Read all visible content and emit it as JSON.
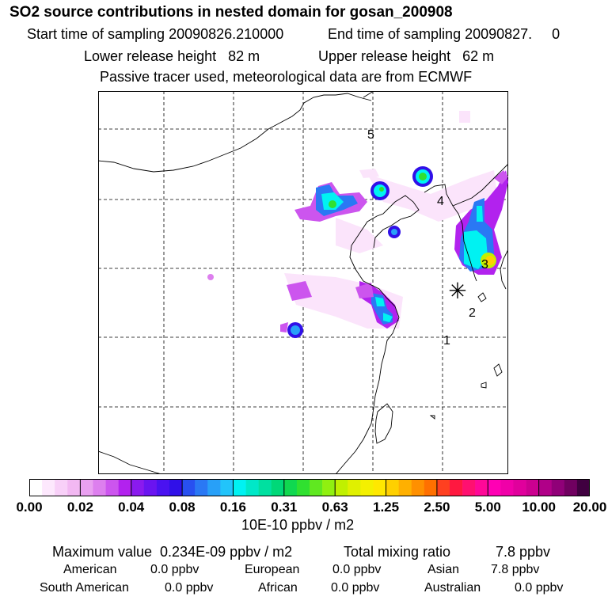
{
  "header": {
    "title": "SO2 source contributions in nested domain for gosan_200908",
    "start": "Start time of sampling 20090826.210000",
    "end": "End time of sampling 20090827.     0",
    "lower": "Lower release height   82 m",
    "upper": "Upper release height   62 m",
    "note": "Passive tracer used, meteorological data are from ECMWF"
  },
  "map": {
    "markers": [
      "5",
      "4",
      "3",
      "2",
      "1"
    ],
    "receptor_symbol": "✳"
  },
  "colorbar": {
    "ticks": [
      "0.00",
      "0.02",
      "0.04",
      "0.08",
      "0.16",
      "0.31",
      "0.63",
      "1.25",
      "2.50",
      "5.00",
      "10.00",
      "20.00"
    ],
    "colors": [
      "#ffffff",
      "#fde8fd",
      "#f8d0f8",
      "#f2b8f2",
      "#e9a0f0",
      "#dd7fee",
      "#cc55ee",
      "#b222ee",
      "#8a1aee",
      "#6a14f0",
      "#4a12f0",
      "#3010e8",
      "#2850f0",
      "#2a78f4",
      "#28a0f8",
      "#22c4fa",
      "#00f2f2",
      "#00e8c8",
      "#00e0a0",
      "#00d878",
      "#10d850",
      "#30e030",
      "#60e820",
      "#90f010",
      "#c0f000",
      "#e0f000",
      "#f4f000",
      "#ffe800",
      "#ffd000",
      "#ffb000",
      "#ff9000",
      "#ff7000",
      "#ff4020",
      "#ff1840",
      "#ff1070",
      "#ff0898",
      "#ff00b4",
      "#f000a8",
      "#e0009c",
      "#cc0090",
      "#b00088",
      "#900078",
      "#700060",
      "#400040"
    ],
    "unit": "10E-10 ppbv / m2"
  },
  "summary": {
    "max": "Maximum value  0.234E-09 ppbv / m2",
    "total_label": "Total mixing ratio",
    "total_value": "7.8 ppbv",
    "regions": [
      {
        "label": "American",
        "value": "0.0 ppbv"
      },
      {
        "label": "European",
        "value": "0.0 ppbv"
      },
      {
        "label": "Asian",
        "value": "7.8 ppbv"
      },
      {
        "label": "South American",
        "value": "0.0 ppbv"
      },
      {
        "label": "African",
        "value": "0.0 ppbv"
      },
      {
        "label": "Australian",
        "value": "0.0 ppbv"
      }
    ]
  }
}
